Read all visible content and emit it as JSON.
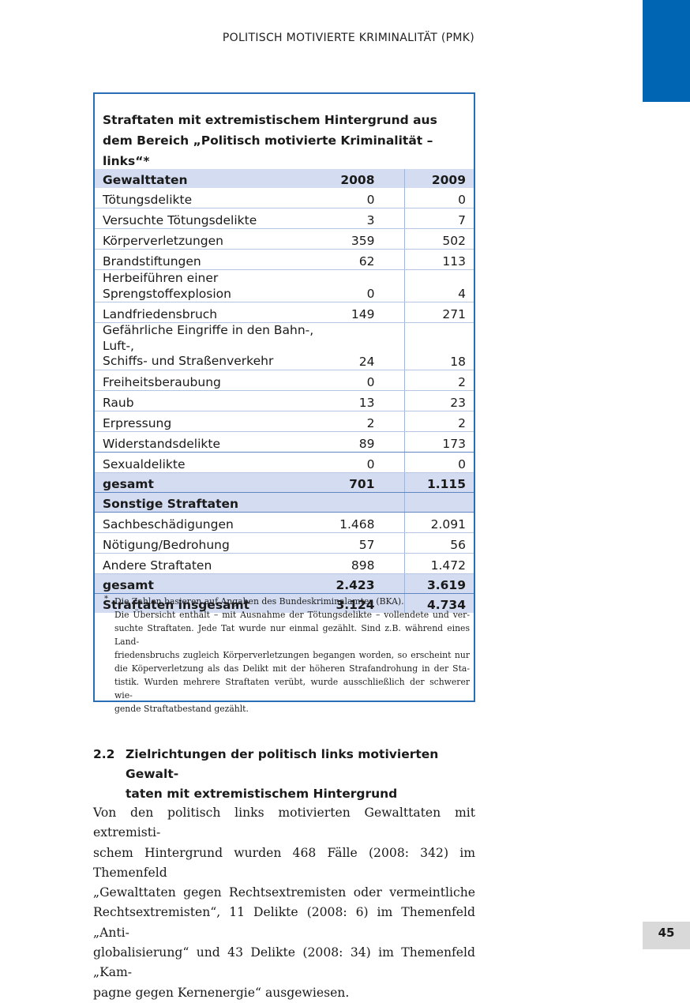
{
  "header": {
    "running_title": "POLITISCH MOTIVIERTE KRIMINALITÄT (PMK)"
  },
  "box": {
    "title": "Straftaten mit extremistischem Hintergrund aus dem Bereich „Politisch motivierte Kriminalität – links“*",
    "columns": [
      "Gewalttaten",
      "2008",
      "2009"
    ],
    "violent_rows": [
      {
        "label": "Tötungsdelikte",
        "y2008": "0",
        "y2009": "0"
      },
      {
        "label": "Versuchte Tötungsdelikte",
        "y2008": "3",
        "y2009": "7"
      },
      {
        "label": "Körperverletzungen",
        "y2008": "359",
        "y2009": "502"
      },
      {
        "label": "Brandstiftungen",
        "y2008": "62",
        "y2009": "113"
      },
      {
        "label": "Herbeiführen einer Sprengstoffexplosion",
        "y2008": "0",
        "y2009": "4"
      },
      {
        "label": "Landfriedensbruch",
        "y2008": "149",
        "y2009": "271"
      },
      {
        "label_line1": "Gefährliche Eingriffe in den Bahn-, Luft-,",
        "label_line2": "Schiffs- und Straßenverkehr",
        "y2008": "24",
        "y2009": "18"
      },
      {
        "label": "Freiheitsberaubung",
        "y2008": "0",
        "y2009": "2"
      },
      {
        "label": "Raub",
        "y2008": "13",
        "y2009": "23"
      },
      {
        "label": "Erpressung",
        "y2008": "2",
        "y2009": "2"
      },
      {
        "label": "Widerstandsdelikte",
        "y2008": "89",
        "y2009": "173"
      },
      {
        "label": "Sexualdelikte",
        "y2008": "0",
        "y2009": "0"
      }
    ],
    "violent_total": {
      "label": "gesamt",
      "y2008": "701",
      "y2009": "1.115"
    },
    "other_header": "Sonstige Straftaten",
    "other_rows": [
      {
        "label": "Sachbeschädigungen",
        "y2008": "1.468",
        "y2009": "2.091"
      },
      {
        "label": "Nötigung/Bedrohung",
        "y2008": "57",
        "y2009": "56"
      },
      {
        "label": "Andere Straftaten",
        "y2008": "898",
        "y2009": "1.472"
      }
    ],
    "other_total": {
      "label": "gesamt",
      "y2008": "2.423",
      "y2009": "3.619"
    },
    "grand_total": {
      "label": "Straftaten insgesamt",
      "y2008": "3.124",
      "y2009": "4.734"
    },
    "footnote_mark": "*",
    "footnote_lines": [
      "Die Zahlen basieren auf Angaben des Bundeskriminalamtes (BKA).",
      "Die Übersicht enthält – mit Ausnahme der Tötungsdelikte – vollendete und ver-",
      "suchte Straftaten. Jede Tat wurde nur einmal gezählt. Sind z.B. während eines Land-",
      "friedensbruchs zugleich Körperverletzungen begangen worden, so erscheint nur",
      "die Köperverletzung als das Delikt mit der höheren Strafandrohung in der Sta-",
      "tistik. Wurden mehrere Straftaten verübt, wurde ausschließlich der schwerer wie-",
      "gende Straftatbestand gezählt."
    ]
  },
  "section": {
    "number": "2.2",
    "heading_line1": "Zielrichtungen der politisch links motivierten Gewalt-",
    "heading_line2": "taten mit extremistischem Hintergrund"
  },
  "body_lines": [
    "Von den politisch links motivierten Gewalttaten mit extremisti-",
    "schem Hintergrund wurden 468 Fälle (2008: 342) im Themenfeld",
    "„Gewalttaten gegen Rechtsextremisten oder vermeintliche",
    "Rechtsextremisten“, 11 Delikte (2008: 6) im Themenfeld „Anti-",
    "globalisierung“ und 43 Delikte (2008: 34) im Themenfeld „Kam-",
    "pagne gegen Kernenergie“ ausgewiesen."
  ],
  "page_number": "45",
  "colors": {
    "accent_blue": "#0066b3",
    "table_shade": "#d3dcf0",
    "box_border": "#2a6db5",
    "page_tab": "#d9d9d9"
  }
}
